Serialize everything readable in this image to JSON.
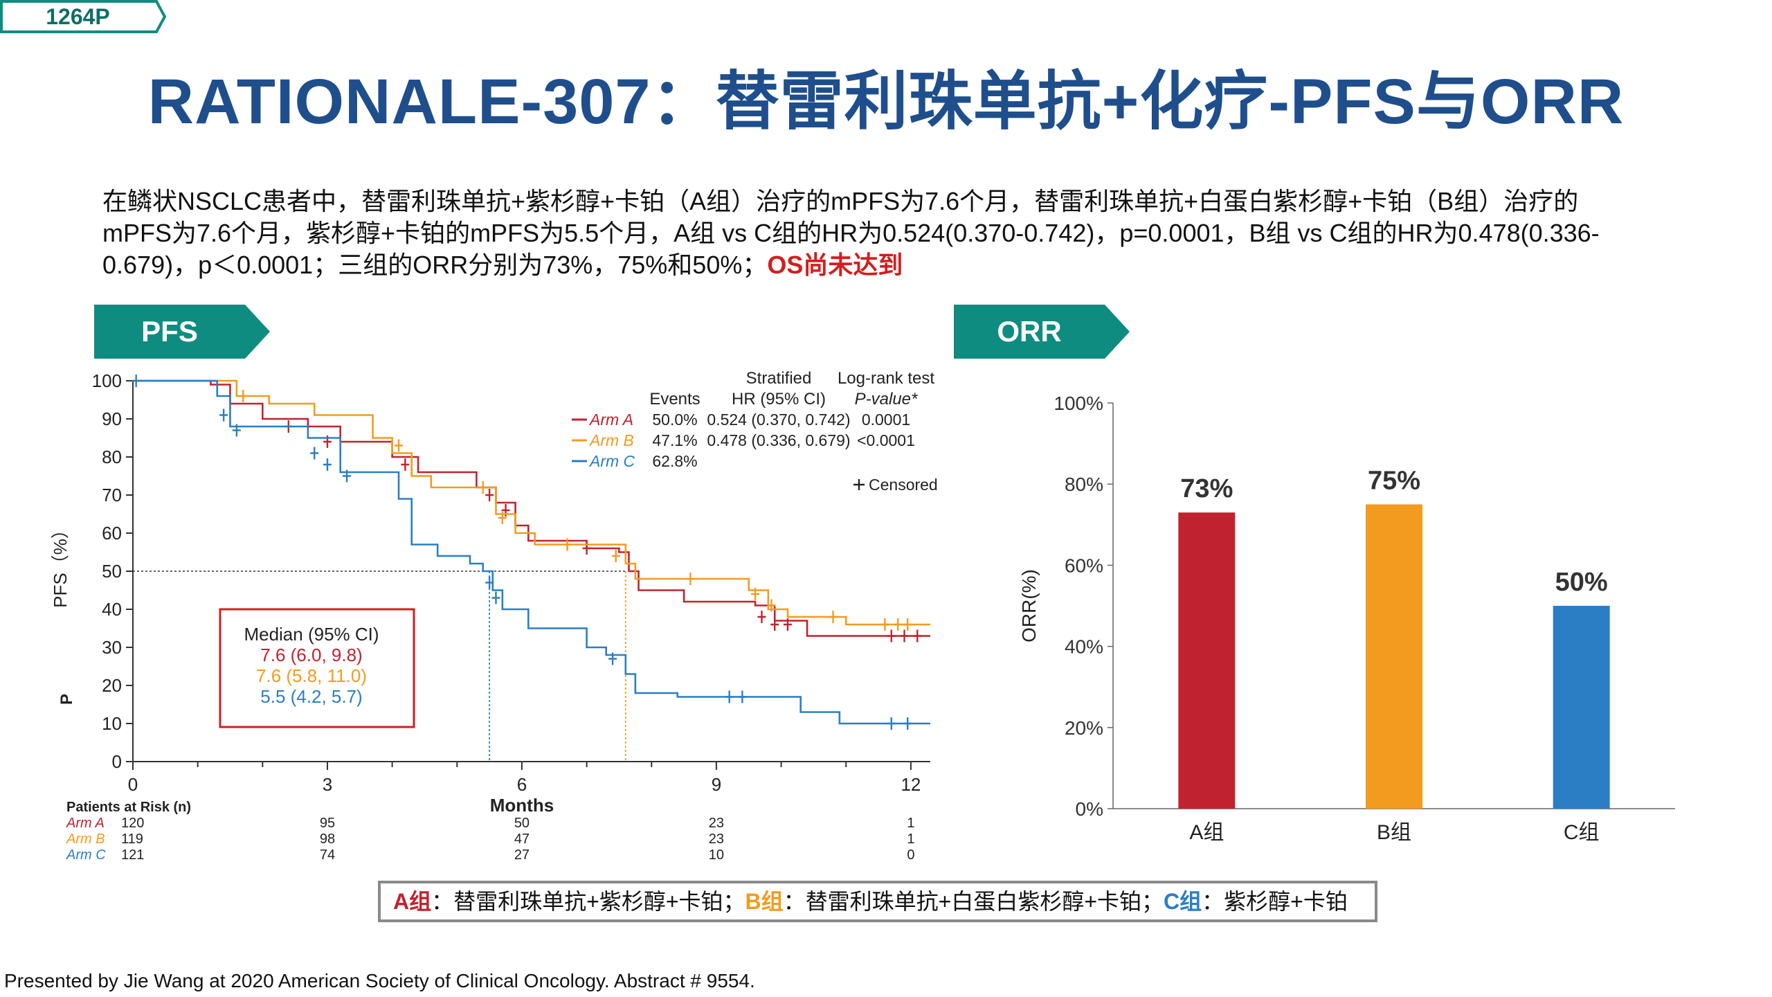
{
  "tag": "1264P",
  "title": "RATIONALE-307：替雷利珠单抗+化疗-PFS与ORR",
  "summary": {
    "text": "在鳞状NSCLC患者中，替雷利珠单抗+紫杉醇+卡铂（A组）治疗的mPFS为7.6个月，替雷利珠单抗+白蛋白紫杉醇+卡铂（B组）治疗的mPFS为7.6个月，紫杉醇+卡铂的mPFS为5.5个月，A组 vs C组的HR为0.524(0.370-0.742)，p=0.0001，B组 vs C组的HR为0.478(0.336-0.679)，p＜0.0001；三组的ORR分别为73%，75%和50%；",
    "highlight": "OS尚未达到"
  },
  "sections": {
    "pfs": "PFS",
    "orr": "ORR"
  },
  "colors": {
    "armA": "#c0232f",
    "armB": "#f39b1f",
    "armC": "#2b7ec3",
    "teal": "#0f8c80",
    "navy": "#1f4e8c"
  },
  "chart_data": [
    {
      "type": "line",
      "chart": "km",
      "ylabel": "PFS（%）",
      "y_extra_label": "P",
      "xlabel": "Months",
      "xlim": [
        0,
        12.3
      ],
      "ylim": [
        0,
        100
      ],
      "xticks": [
        0,
        3,
        6,
        9,
        12
      ],
      "yticks": [
        0,
        10,
        20,
        30,
        40,
        50,
        60,
        70,
        80,
        90,
        100
      ],
      "series": [
        {
          "name": "Arm A",
          "color": "#c0232f",
          "x": [
            0,
            1.2,
            1.5,
            2.0,
            2.7,
            3.2,
            4.0,
            4.4,
            5.3,
            5.6,
            5.9,
            6.1,
            6.4,
            7.0,
            7.5,
            7.65,
            7.8,
            8.5,
            9.6,
            9.9,
            10.4,
            12.3
          ],
          "y": [
            100,
            99,
            94,
            90,
            88,
            84,
            80,
            76,
            72,
            68,
            62,
            58,
            58,
            56,
            55,
            50,
            45,
            42,
            41,
            37,
            33,
            33
          ],
          "censor": [
            [
              2.4,
              88
            ],
            [
              3.0,
              84
            ],
            [
              4.2,
              78
            ],
            [
              5.5,
              70
            ],
            [
              5.75,
              66
            ],
            [
              7.0,
              56
            ],
            [
              9.7,
              38
            ],
            [
              9.9,
              36
            ],
            [
              10.1,
              36
            ],
            [
              11.7,
              33
            ],
            [
              11.9,
              33
            ],
            [
              12.1,
              33
            ]
          ]
        },
        {
          "name": "Arm B",
          "color": "#f39b1f",
          "x": [
            0,
            1.4,
            1.6,
            2.1,
            2.8,
            3.7,
            4.0,
            4.3,
            4.6,
            5.3,
            5.6,
            5.9,
            6.2,
            7.4,
            7.6,
            7.75,
            9.5,
            9.8,
            10.1,
            11.0,
            12.3
          ],
          "y": [
            100,
            100,
            96,
            94,
            91,
            85,
            81,
            75,
            72,
            72,
            65,
            60,
            57,
            57,
            52,
            48,
            45,
            40,
            38,
            36,
            36
          ],
          "censor": [
            [
              1.7,
              96
            ],
            [
              4.1,
              83
            ],
            [
              5.4,
              72
            ],
            [
              5.7,
              64
            ],
            [
              6.7,
              57
            ],
            [
              7.45,
              54
            ],
            [
              8.6,
              48
            ],
            [
              9.6,
              44
            ],
            [
              9.85,
              41
            ],
            [
              10.8,
              38
            ],
            [
              11.6,
              36
            ],
            [
              11.8,
              36
            ],
            [
              11.95,
              36
            ]
          ]
        },
        {
          "name": "Arm C",
          "color": "#2b7ec3",
          "x": [
            0,
            1.3,
            1.5,
            2.7,
            3.2,
            4.1,
            4.3,
            4.7,
            5.2,
            5.4,
            5.55,
            5.7,
            6.1,
            7.0,
            7.3,
            7.6,
            7.75,
            8.4,
            10.3,
            10.9,
            12.3
          ],
          "y": [
            100,
            96,
            88,
            85,
            76,
            69,
            57,
            54,
            52,
            50,
            45,
            40,
            35,
            30,
            28,
            23,
            18,
            17,
            13,
            10,
            10
          ],
          "censor": [
            [
              0.05,
              100
            ],
            [
              1.4,
              91
            ],
            [
              1.6,
              87
            ],
            [
              2.8,
              81
            ],
            [
              3.0,
              78
            ],
            [
              3.3,
              75
            ],
            [
              5.5,
              47
            ],
            [
              5.6,
              43
            ],
            [
              7.4,
              27
            ],
            [
              9.2,
              17
            ],
            [
              9.4,
              17
            ],
            [
              11.7,
              10
            ],
            [
              11.95,
              10
            ]
          ]
        }
      ],
      "median": {
        "y": 50,
        "x": {
          "Arm C": 5.5,
          "Arm A": 7.6
        }
      },
      "stats_table": {
        "header_events": "Events",
        "header_hr_1": "Stratified",
        "header_hr_2": "HR (95% CI)",
        "header_p_1": "Log-rank test",
        "header_p_2": "P-value*",
        "rows": [
          {
            "arm": "Arm A",
            "events": "50.0%",
            "hr": "0.524 (0.370, 0.742)",
            "p": "0.0001"
          },
          {
            "arm": "Arm B",
            "events": "47.1%",
            "hr": "0.478 (0.336, 0.679)",
            "p": "<0.0001"
          },
          {
            "arm": "Arm C",
            "events": "62.8%",
            "hr": "",
            "p": ""
          }
        ],
        "censored_label": "Censored"
      },
      "median_box": {
        "title": "Median (95% CI)",
        "lines": [
          "7.6 (6.0, 9.8)",
          "7.6 (5.8, 11.0)",
          "5.5 (4.2, 5.7)"
        ]
      },
      "risk_table": {
        "title": "Patients at Risk (n)",
        "rows": [
          {
            "arm": "Arm A",
            "values": [
              "120",
              "95",
              "50",
              "23",
              "1"
            ]
          },
          {
            "arm": "Arm B",
            "values": [
              "119",
              "98",
              "47",
              "23",
              "1"
            ]
          },
          {
            "arm": "Arm C",
            "values": [
              "121",
              "74",
              "27",
              "10",
              "0"
            ]
          }
        ]
      }
    },
    {
      "type": "bar",
      "chart": "orr",
      "ylabel": "ORR(%)",
      "categories": [
        "A组",
        "B组",
        "C组"
      ],
      "values": [
        73,
        75,
        50
      ],
      "value_labels": [
        "73%",
        "75%",
        "50%"
      ],
      "colors": [
        "#c0232f",
        "#f39b1f",
        "#2b7ec3"
      ],
      "ylim": [
        0,
        100
      ],
      "yticks": [
        "0%",
        "20%",
        "40%",
        "60%",
        "80%",
        "100%"
      ]
    }
  ],
  "group_legend": {
    "a_key": "A组",
    "a_text": "：替雷利珠单抗+紫杉醇+卡铂；",
    "b_key": "B组",
    "b_text": "：替雷利珠单抗+白蛋白紫杉醇+卡铂；",
    "c_key": "C组",
    "c_text": "：紫杉醇+卡铂"
  },
  "footer": "Presented by Jie Wang at 2020 American Society of Clinical Oncology. Abstract # 9554."
}
